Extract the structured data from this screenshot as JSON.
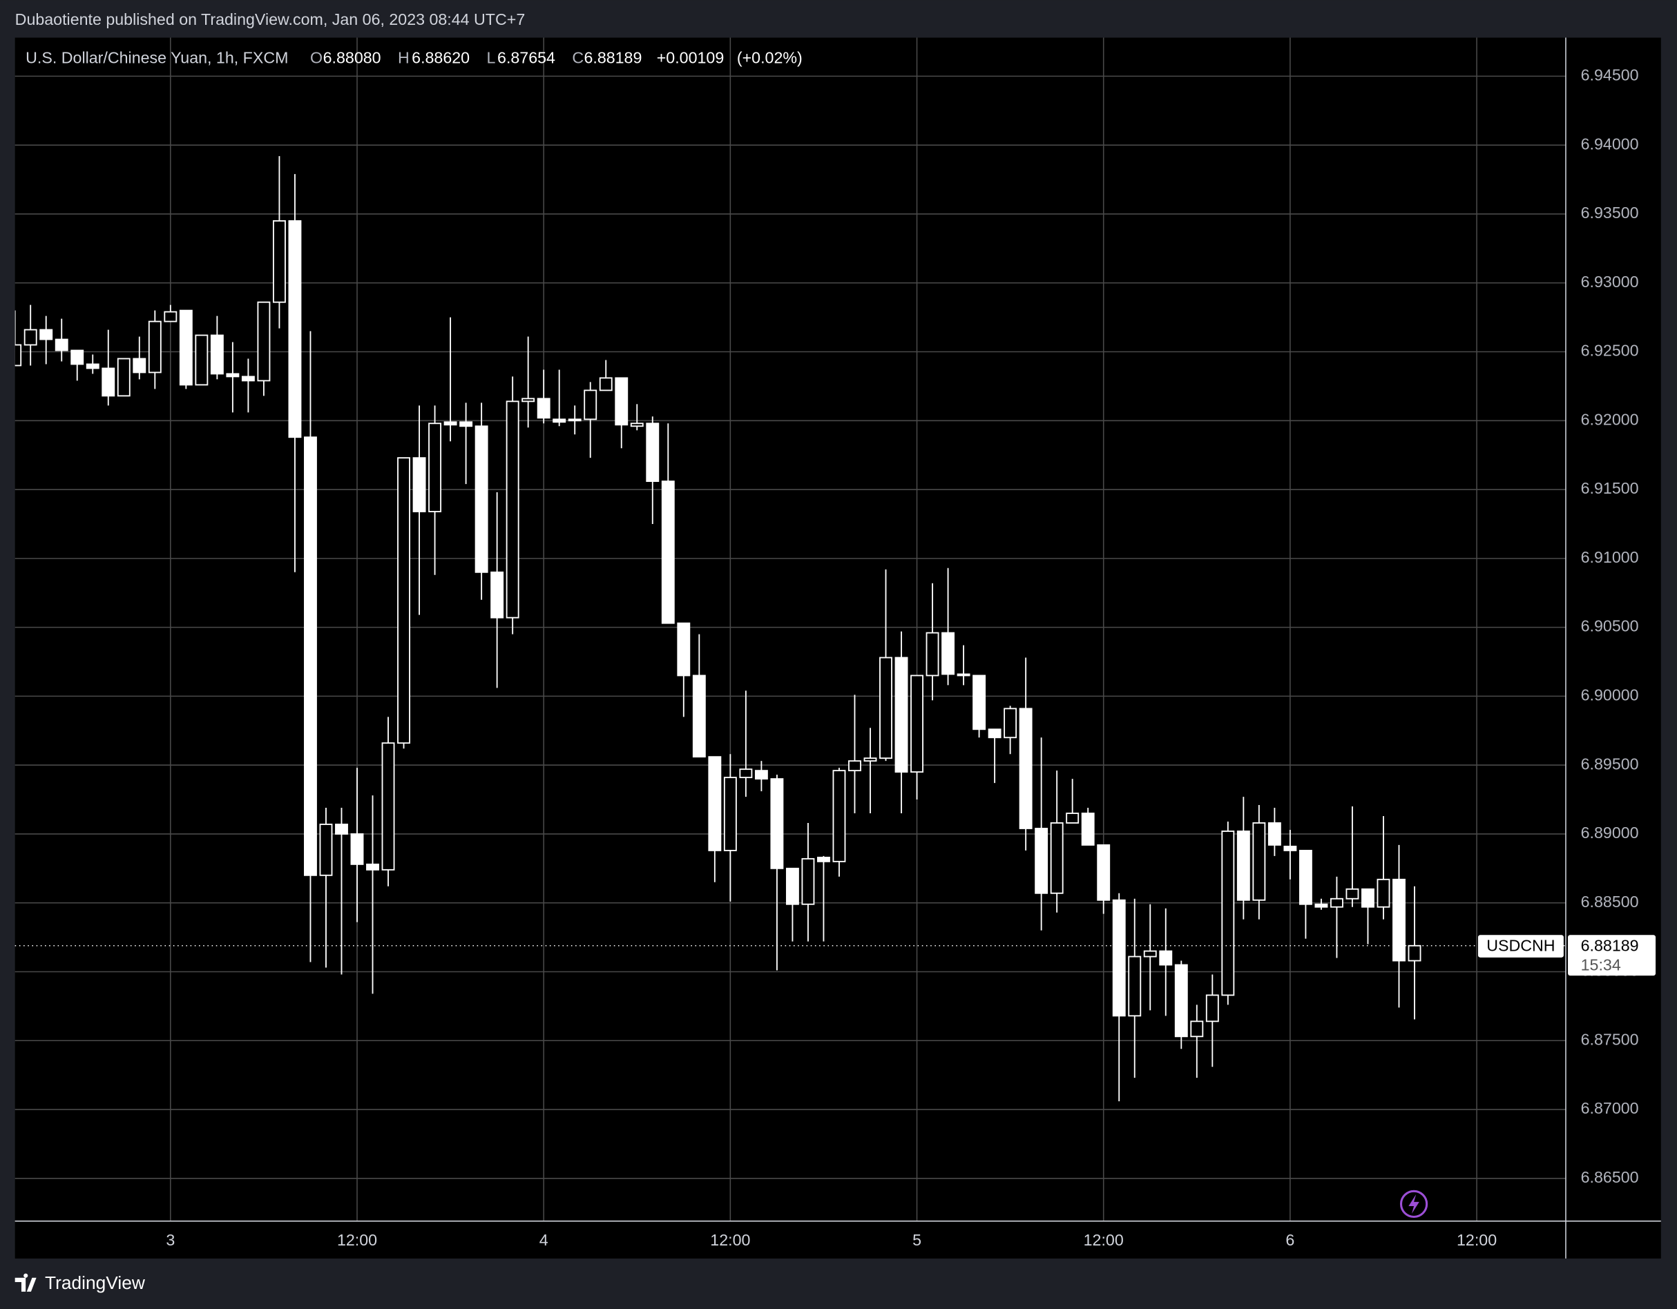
{
  "header": {
    "title": "Dubaotiente published on TradingView.com, Jan 06, 2023 08:44 UTC+7"
  },
  "chart_data": {
    "type": "candlestick",
    "title": "U.S. Dollar/Chinese Yuan, 1h, FXCM",
    "legend": {
      "open_label": "O",
      "open": "6.88080",
      "high_label": "H",
      "high": "6.88620",
      "low_label": "L",
      "low": "6.87654",
      "close_label": "C",
      "change": "+0.00109",
      "change_pct": "(+0.02%)"
    },
    "symbol": "USDCNH",
    "countdown": "15:34",
    "categories": [
      null,
      null,
      null,
      null,
      null,
      null,
      null,
      null,
      null,
      null,
      "3",
      null,
      null,
      null,
      null,
      null,
      null,
      null,
      null,
      null,
      null,
      null,
      "12:00",
      null,
      null,
      null,
      null,
      null,
      null,
      null,
      null,
      null,
      null,
      null,
      "4",
      null,
      null,
      null,
      null,
      null,
      null,
      null,
      null,
      null,
      null,
      null,
      "12:00",
      null,
      null,
      null,
      null,
      null,
      null,
      null,
      null,
      null,
      null,
      null,
      "5",
      null,
      null,
      null,
      null,
      null,
      null,
      null,
      null,
      null,
      null,
      null,
      "12:00",
      null,
      null,
      null,
      null,
      null,
      null,
      null,
      null,
      null,
      null,
      null,
      "6",
      null,
      null,
      null,
      null,
      null,
      null,
      null,
      null,
      null,
      null,
      null,
      "12:00",
      null,
      null,
      null,
      null,
      null
    ],
    "open": [
      6.924,
      6.9255,
      6.9266,
      6.9259,
      6.9251,
      6.9241,
      6.9238,
      6.9218,
      6.9245,
      6.9235,
      6.9272,
      6.928,
      6.9226,
      6.9262,
      6.9234,
      6.9232,
      6.9229,
      6.9286,
      6.9345,
      6.9188,
      6.887,
      6.8907,
      6.89,
      6.8878,
      6.8874,
      6.8966,
      6.9173,
      6.9134,
      6.9199,
      6.9199,
      6.9196,
      6.909,
      6.9057,
      6.9214,
      6.9216,
      6.9201,
      6.9201,
      6.9201,
      6.9222,
      6.9231,
      6.9196,
      6.9198,
      6.9156,
      6.9053,
      6.9015,
      6.8956,
      6.8888,
      6.8941,
      6.8946,
      6.894,
      6.8875,
      6.8849,
      6.8883,
      6.888,
      6.8946,
      6.8953,
      6.8955,
      6.9028,
      6.8945,
      6.9015,
      6.9046,
      6.9016,
      6.9015,
      6.8976,
      6.897,
      6.8991,
      6.8904,
      6.8857,
      6.8908,
      6.8915,
      6.8892,
      6.8852,
      6.8768,
      6.8811,
      6.8815,
      6.8805,
      6.8753,
      6.8764,
      6.8783,
      6.8902,
      6.8852,
      6.8908,
      6.8891,
      6.8888,
      6.8849,
      6.8847,
      6.8853,
      6.886,
      6.8847,
      6.8867,
      6.8808,
      null,
      null,
      null,
      null,
      null,
      null,
      null,
      null,
      null
    ],
    "high": [
      6.928,
      6.9284,
      6.9276,
      6.9274,
      6.9251,
      6.9248,
      6.9266,
      6.9245,
      6.9261,
      6.928,
      6.9284,
      6.928,
      6.9262,
      6.9276,
      6.9257,
      6.9245,
      6.9286,
      6.9392,
      6.9379,
      6.9265,
      6.8919,
      6.8919,
      6.8948,
      6.8928,
      6.8985,
      6.9173,
      6.9211,
      6.9211,
      6.9275,
      6.9213,
      6.9213,
      6.9148,
      6.9232,
      6.9261,
      6.9237,
      6.9237,
      6.9211,
      6.9228,
      6.9244,
      6.9231,
      6.9212,
      6.9203,
      6.9198,
      6.9053,
      6.9045,
      6.8956,
      6.8958,
      6.9004,
      6.8953,
      6.8943,
      6.8875,
      6.8908,
      6.8884,
      6.8948,
      6.9001,
      6.8977,
      6.9092,
      6.9047,
      6.9015,
      6.9082,
      6.9093,
      6.9037,
      6.9015,
      6.8976,
      6.8993,
      6.9028,
      6.897,
      6.8946,
      6.894,
      6.8919,
      6.8892,
      6.8857,
      6.8853,
      6.8849,
      6.8846,
      6.8808,
      6.8776,
      6.8798,
      6.8909,
      6.8927,
      6.8921,
      6.8919,
      6.8903,
      6.8888,
      6.8853,
      6.8869,
      6.892,
      6.886,
      6.8913,
      6.8892,
      6.8862,
      null,
      null,
      null,
      null,
      null,
      null,
      null,
      null,
      null
    ],
    "low": [
      6.924,
      6.924,
      6.9241,
      6.9243,
      6.9229,
      6.9234,
      6.9211,
      6.9218,
      6.923,
      6.9223,
      6.9272,
      6.9223,
      6.9226,
      6.923,
      6.9206,
      6.9206,
      6.9218,
      6.9267,
      6.909,
      6.8807,
      6.8803,
      6.8798,
      6.8836,
      6.8784,
      6.8862,
      6.8962,
      6.9059,
      6.9088,
      6.9185,
      6.9154,
      6.907,
      6.9006,
      6.9045,
      6.9195,
      6.9198,
      6.9196,
      6.919,
      6.9173,
      6.9222,
      6.918,
      6.9193,
      6.9125,
      6.9053,
      6.8985,
      6.8956,
      6.8865,
      6.8851,
      6.8927,
      6.8931,
      6.8801,
      6.8822,
      6.8822,
      6.8822,
      6.8869,
      6.8915,
      6.8915,
      6.8953,
      6.8915,
      6.8925,
      6.8997,
      6.9008,
      6.9008,
      6.897,
      6.8937,
      6.8958,
      6.8888,
      6.883,
      6.8843,
      6.8908,
      6.8892,
      6.8842,
      6.8706,
      6.8723,
      6.8772,
      6.8768,
      6.8744,
      6.8723,
      6.8731,
      6.8776,
      6.8838,
      6.8838,
      6.8884,
      6.8867,
      6.8824,
      6.8845,
      6.881,
      6.8847,
      6.882,
      6.8838,
      6.8774,
      6.87654,
      null,
      null,
      null,
      null,
      null,
      null,
      null,
      null,
      null
    ],
    "close": [
      6.9255,
      6.9266,
      6.9259,
      6.9251,
      6.9241,
      6.9238,
      6.9218,
      6.9245,
      6.9235,
      6.9272,
      6.9279,
      6.9226,
      6.9262,
      6.9234,
      6.9232,
      6.9229,
      6.9286,
      6.9345,
      6.9188,
      6.887,
      6.8907,
      6.89,
      6.8878,
      6.8874,
      6.8966,
      6.9173,
      6.9134,
      6.9198,
      6.9197,
      6.9196,
      6.909,
      6.9057,
      6.9214,
      6.9216,
      6.9202,
      6.9199,
      6.92,
      6.9222,
      6.9231,
      6.9197,
      6.9198,
      6.9156,
      6.9053,
      6.9015,
      6.8956,
      6.8888,
      6.8941,
      6.8947,
      6.894,
      6.8875,
      6.8849,
      6.8882,
      6.888,
      6.8946,
      6.8953,
      6.8955,
      6.9028,
      6.8945,
      6.9015,
      6.9046,
      6.9016,
      6.9015,
      6.8976,
      6.897,
      6.8991,
      6.8904,
      6.8857,
      6.8908,
      6.8915,
      6.8892,
      6.8852,
      6.8768,
      6.8811,
      6.8815,
      6.8805,
      6.8753,
      6.8764,
      6.8783,
      6.8902,
      6.8852,
      6.8908,
      6.8892,
      6.8888,
      6.8849,
      6.8847,
      6.8853,
      6.886,
      6.8847,
      6.8867,
      6.8808,
      6.88189,
      null,
      null,
      null,
      null,
      null,
      null,
      null,
      null,
      null
    ],
    "up_color": "#000000",
    "down_color": "#ffffff",
    "wick_color": "#ffffff",
    "grid_color": "#4a4a4a",
    "ylim": [
      6.8619,
      6.9478
    ],
    "yticks": [
      {
        "value": 6.865,
        "label": "6.86500"
      },
      {
        "value": 6.87,
        "label": "6.87000"
      },
      {
        "value": 6.875,
        "label": "6.87500"
      },
      {
        "value": 6.88,
        "label": "6.88000"
      },
      {
        "value": 6.885,
        "label": "6.88500"
      },
      {
        "value": 6.89,
        "label": "6.89000"
      },
      {
        "value": 6.895,
        "label": "6.89500"
      },
      {
        "value": 6.9,
        "label": "6.90000"
      },
      {
        "value": 6.905,
        "label": "6.90500"
      },
      {
        "value": 6.91,
        "label": "6.91000"
      },
      {
        "value": 6.915,
        "label": "6.91500"
      },
      {
        "value": 6.92,
        "label": "6.92000"
      },
      {
        "value": 6.925,
        "label": "6.92500"
      },
      {
        "value": 6.93,
        "label": "6.93000"
      },
      {
        "value": 6.935,
        "label": "6.93500"
      },
      {
        "value": 6.94,
        "label": "6.94000"
      },
      {
        "value": 6.945,
        "label": "6.94500"
      }
    ],
    "grid": true
  },
  "footer": {
    "brand": "TradingView"
  }
}
